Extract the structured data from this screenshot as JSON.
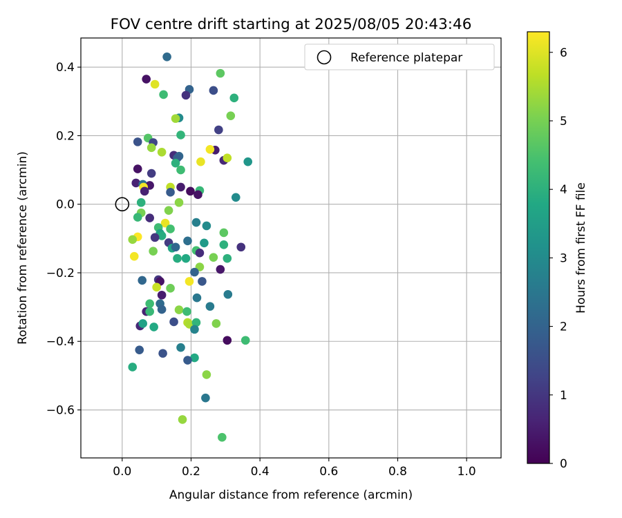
{
  "chart_data": {
    "type": "scatter",
    "title": "FOV centre drift starting at 2025/08/05 20:43:46",
    "xlabel": "Angular distance from reference (arcmin)",
    "ylabel": "Rotation from reference (arcmin)",
    "xlim": [
      -0.12,
      1.1
    ],
    "ylim": [
      -0.74,
      0.485
    ],
    "xticks": [
      0.0,
      0.2,
      0.4,
      0.6,
      0.8,
      1.0
    ],
    "xtick_labels": [
      "0.0",
      "0.2",
      "0.4",
      "0.6",
      "0.8",
      "1.0"
    ],
    "yticks": [
      0.4,
      0.2,
      0.0,
      -0.2,
      -0.4,
      -0.6
    ],
    "ytick_labels": [
      "0.4",
      "0.2",
      "0.0",
      "−0.2",
      "−0.4",
      "−0.6"
    ],
    "grid": true,
    "legend": {
      "position": "top-right",
      "entries": [
        "Reference platepar"
      ]
    },
    "reference_point": {
      "x": 0.0,
      "y": 0.0
    },
    "colorbar": {
      "label": "Hours from first FF file",
      "colormap": "viridis",
      "range": [
        0,
        6.3
      ],
      "ticks": [
        0,
        1,
        2,
        3,
        4,
        5,
        6
      ],
      "tick_labels": [
        "0",
        "1",
        "2",
        "3",
        "4",
        "5",
        "6"
      ]
    },
    "points": [
      {
        "x": 0.13,
        "y": 0.43,
        "c": 2.2
      },
      {
        "x": 0.07,
        "y": 0.365,
        "c": 0.3
      },
      {
        "x": 0.095,
        "y": 0.35,
        "c": 6.0
      },
      {
        "x": 0.285,
        "y": 0.382,
        "c": 4.7
      },
      {
        "x": 0.195,
        "y": 0.335,
        "c": 2.0
      },
      {
        "x": 0.265,
        "y": 0.332,
        "c": 1.5
      },
      {
        "x": 0.12,
        "y": 0.32,
        "c": 4.3
      },
      {
        "x": 0.185,
        "y": 0.318,
        "c": 0.9
      },
      {
        "x": 0.325,
        "y": 0.31,
        "c": 4.0
      },
      {
        "x": 0.165,
        "y": 0.252,
        "c": 3.0
      },
      {
        "x": 0.155,
        "y": 0.25,
        "c": 5.4
      },
      {
        "x": 0.315,
        "y": 0.258,
        "c": 5.0
      },
      {
        "x": 0.28,
        "y": 0.217,
        "c": 1.2
      },
      {
        "x": 0.17,
        "y": 0.202,
        "c": 4.1
      },
      {
        "x": 0.075,
        "y": 0.193,
        "c": 4.6
      },
      {
        "x": 0.045,
        "y": 0.182,
        "c": 1.6
      },
      {
        "x": 0.09,
        "y": 0.18,
        "c": 1.3
      },
      {
        "x": 0.085,
        "y": 0.165,
        "c": 5.3
      },
      {
        "x": 0.115,
        "y": 0.152,
        "c": 5.5
      },
      {
        "x": 0.27,
        "y": 0.158,
        "c": 0.5
      },
      {
        "x": 0.255,
        "y": 0.16,
        "c": 6.2
      },
      {
        "x": 0.15,
        "y": 0.143,
        "c": 0.8
      },
      {
        "x": 0.165,
        "y": 0.14,
        "c": 2.1
      },
      {
        "x": 0.16,
        "y": 0.135,
        "c": 1.9
      },
      {
        "x": 0.295,
        "y": 0.128,
        "c": 0.7
      },
      {
        "x": 0.305,
        "y": 0.135,
        "c": 5.7
      },
      {
        "x": 0.228,
        "y": 0.124,
        "c": 6.1
      },
      {
        "x": 0.365,
        "y": 0.124,
        "c": 3.3
      },
      {
        "x": 0.155,
        "y": 0.12,
        "c": 4.0
      },
      {
        "x": 0.045,
        "y": 0.103,
        "c": 0.3
      },
      {
        "x": 0.17,
        "y": 0.1,
        "c": 4.3
      },
      {
        "x": 0.085,
        "y": 0.09,
        "c": 1.1
      },
      {
        "x": 0.04,
        "y": 0.062,
        "c": 0.6
      },
      {
        "x": 0.06,
        "y": 0.058,
        "c": 2.4
      },
      {
        "x": 0.08,
        "y": 0.055,
        "c": 0.4
      },
      {
        "x": 0.062,
        "y": 0.05,
        "c": 6.2
      },
      {
        "x": 0.14,
        "y": 0.05,
        "c": 5.7
      },
      {
        "x": 0.17,
        "y": 0.05,
        "c": 0.5
      },
      {
        "x": 0.065,
        "y": 0.038,
        "c": 0.6
      },
      {
        "x": 0.14,
        "y": 0.035,
        "c": 1.8
      },
      {
        "x": 0.198,
        "y": 0.038,
        "c": 0.2
      },
      {
        "x": 0.225,
        "y": 0.04,
        "c": 4.2
      },
      {
        "x": 0.22,
        "y": 0.028,
        "c": 0.3
      },
      {
        "x": 0.33,
        "y": 0.02,
        "c": 3.0
      },
      {
        "x": 0.055,
        "y": 0.005,
        "c": 4.0
      },
      {
        "x": 0.165,
        "y": 0.005,
        "c": 5.2
      },
      {
        "x": 0.135,
        "y": -0.018,
        "c": 5.1
      },
      {
        "x": 0.055,
        "y": -0.025,
        "c": 5.0
      },
      {
        "x": 0.045,
        "y": -0.038,
        "c": 4.2
      },
      {
        "x": 0.08,
        "y": -0.04,
        "c": 0.8
      },
      {
        "x": 0.125,
        "y": -0.055,
        "c": 6.1
      },
      {
        "x": 0.215,
        "y": -0.053,
        "c": 2.7
      },
      {
        "x": 0.245,
        "y": -0.063,
        "c": 3.0
      },
      {
        "x": 0.105,
        "y": -0.068,
        "c": 4.3
      },
      {
        "x": 0.14,
        "y": -0.072,
        "c": 4.4
      },
      {
        "x": 0.11,
        "y": -0.085,
        "c": 3.6
      },
      {
        "x": 0.115,
        "y": -0.092,
        "c": 3.9
      },
      {
        "x": 0.295,
        "y": -0.083,
        "c": 4.7
      },
      {
        "x": 0.095,
        "y": -0.097,
        "c": 1.0
      },
      {
        "x": 0.045,
        "y": -0.095,
        "c": 6.3
      },
      {
        "x": 0.03,
        "y": -0.103,
        "c": 5.3
      },
      {
        "x": 0.135,
        "y": -0.112,
        "c": 1.1
      },
      {
        "x": 0.19,
        "y": -0.107,
        "c": 2.3
      },
      {
        "x": 0.238,
        "y": -0.113,
        "c": 3.4
      },
      {
        "x": 0.295,
        "y": -0.118,
        "c": 4.0
      },
      {
        "x": 0.345,
        "y": -0.125,
        "c": 0.9
      },
      {
        "x": 0.145,
        "y": -0.128,
        "c": 3.7
      },
      {
        "x": 0.155,
        "y": -0.125,
        "c": 2.1
      },
      {
        "x": 0.09,
        "y": -0.137,
        "c": 5.0
      },
      {
        "x": 0.215,
        "y": -0.135,
        "c": 4.4
      },
      {
        "x": 0.225,
        "y": -0.142,
        "c": 0.8
      },
      {
        "x": 0.035,
        "y": -0.152,
        "c": 6.2
      },
      {
        "x": 0.16,
        "y": -0.158,
        "c": 3.9
      },
      {
        "x": 0.185,
        "y": -0.158,
        "c": 3.8
      },
      {
        "x": 0.265,
        "y": -0.155,
        "c": 5.0
      },
      {
        "x": 0.305,
        "y": -0.158,
        "c": 4.0
      },
      {
        "x": 0.225,
        "y": -0.183,
        "c": 5.2
      },
      {
        "x": 0.285,
        "y": -0.19,
        "c": 0.4
      },
      {
        "x": 0.21,
        "y": -0.198,
        "c": 2.0
      },
      {
        "x": 0.058,
        "y": -0.222,
        "c": 2.1
      },
      {
        "x": 0.105,
        "y": -0.22,
        "c": 1.0
      },
      {
        "x": 0.11,
        "y": -0.225,
        "c": 0.3
      },
      {
        "x": 0.195,
        "y": -0.225,
        "c": 6.2
      },
      {
        "x": 0.232,
        "y": -0.225,
        "c": 1.7
      },
      {
        "x": 0.1,
        "y": -0.242,
        "c": 5.8
      },
      {
        "x": 0.14,
        "y": -0.245,
        "c": 4.9
      },
      {
        "x": 0.115,
        "y": -0.265,
        "c": 0.5
      },
      {
        "x": 0.307,
        "y": -0.263,
        "c": 2.6
      },
      {
        "x": 0.217,
        "y": -0.273,
        "c": 2.5
      },
      {
        "x": 0.11,
        "y": -0.29,
        "c": 2.2
      },
      {
        "x": 0.08,
        "y": -0.29,
        "c": 4.3
      },
      {
        "x": 0.255,
        "y": -0.298,
        "c": 2.6
      },
      {
        "x": 0.115,
        "y": -0.307,
        "c": 2.0
      },
      {
        "x": 0.165,
        "y": -0.308,
        "c": 5.2
      },
      {
        "x": 0.07,
        "y": -0.313,
        "c": 0.6
      },
      {
        "x": 0.188,
        "y": -0.313,
        "c": 4.3
      },
      {
        "x": 0.08,
        "y": -0.313,
        "c": 4.2
      },
      {
        "x": 0.052,
        "y": -0.355,
        "c": 0.7
      },
      {
        "x": 0.06,
        "y": -0.348,
        "c": 3.6
      },
      {
        "x": 0.15,
        "y": -0.343,
        "c": 1.5
      },
      {
        "x": 0.19,
        "y": -0.345,
        "c": 5.6
      },
      {
        "x": 0.195,
        "y": -0.35,
        "c": 5.5
      },
      {
        "x": 0.215,
        "y": -0.345,
        "c": 4.1
      },
      {
        "x": 0.273,
        "y": -0.348,
        "c": 5.1
      },
      {
        "x": 0.092,
        "y": -0.358,
        "c": 3.8
      },
      {
        "x": 0.21,
        "y": -0.365,
        "c": 2.8
      },
      {
        "x": 0.305,
        "y": -0.397,
        "c": 0.2
      },
      {
        "x": 0.358,
        "y": -0.397,
        "c": 4.3
      },
      {
        "x": 0.17,
        "y": -0.418,
        "c": 2.7
      },
      {
        "x": 0.05,
        "y": -0.425,
        "c": 1.8
      },
      {
        "x": 0.118,
        "y": -0.435,
        "c": 1.6
      },
      {
        "x": 0.21,
        "y": -0.448,
        "c": 3.8
      },
      {
        "x": 0.19,
        "y": -0.455,
        "c": 1.8
      },
      {
        "x": 0.03,
        "y": -0.475,
        "c": 3.9
      },
      {
        "x": 0.245,
        "y": -0.497,
        "c": 5.2
      },
      {
        "x": 0.242,
        "y": -0.565,
        "c": 2.5
      },
      {
        "x": 0.175,
        "y": -0.628,
        "c": 5.3
      },
      {
        "x": 0.29,
        "y": -0.68,
        "c": 4.5
      }
    ]
  }
}
